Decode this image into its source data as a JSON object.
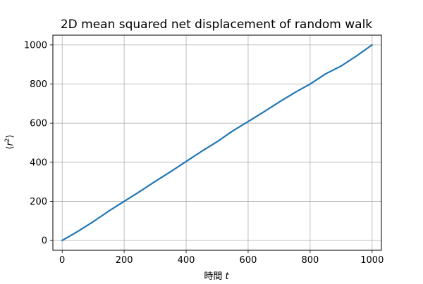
{
  "chart_data": {
    "type": "line",
    "title": "2D mean squared net displacement of random walk",
    "xlabel": "時間 t",
    "xlabel_main": "時間",
    "xlabel_var": "t",
    "ylabel": "⟨r²⟩",
    "ylabel_left": "⟨",
    "ylabel_var": "r",
    "ylabel_sup": "2",
    "ylabel_right": "⟩",
    "xlim": [
      -30,
      1030
    ],
    "ylim": [
      -50,
      1050
    ],
    "xticks": [
      0,
      200,
      400,
      600,
      800,
      1000
    ],
    "yticks": [
      0,
      200,
      400,
      600,
      800,
      1000
    ],
    "grid": true,
    "legend": "none",
    "line_color": "#1f77b4",
    "series": [
      {
        "x": [
          0,
          50,
          100,
          150,
          200,
          250,
          300,
          350,
          400,
          450,
          500,
          550,
          600,
          650,
          700,
          750,
          800,
          850,
          900,
          950,
          1000
        ],
        "values": [
          0,
          46,
          96,
          150,
          200,
          250,
          302,
          352,
          404,
          456,
          505,
          560,
          608,
          657,
          708,
          756,
          800,
          852,
          892,
          944,
          1000
        ]
      }
    ]
  }
}
